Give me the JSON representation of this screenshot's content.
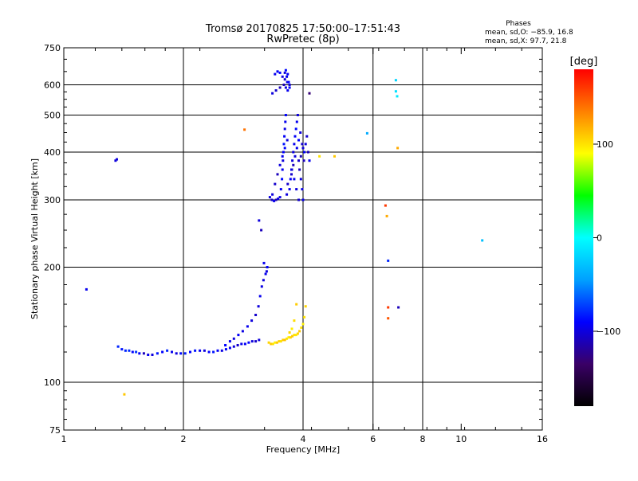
{
  "chart_data": {
    "type": "scatter",
    "title": "Tromsø 20170825 17:50:00–17:51:43",
    "subtitle": "RwPretec (8p)",
    "xlabel": "Frequency [MHz]",
    "ylabel": "Stationary phase Virtual Height [km]",
    "x_scale": "log",
    "y_scale": "log",
    "xlim": [
      1,
      16
    ],
    "ylim": [
      75,
      750
    ],
    "x_ticks": [
      1,
      2,
      4,
      6,
      8,
      10,
      16
    ],
    "y_ticks": [
      75,
      100,
      200,
      300,
      400,
      500,
      600,
      750
    ],
    "x_gridlines": [
      2,
      4,
      6,
      8
    ],
    "y_gridlines": [
      100,
      200,
      300,
      400,
      500,
      600
    ],
    "grid": true,
    "stats_title": "Phases",
    "stats_line1": "mean, sd,O: −85.9, 16.8",
    "stats_line2": "mean, sd,X:  97.7, 21.8",
    "colorbar": {
      "label": "[deg]",
      "ticks": [
        "100",
        "0",
        "−100"
      ],
      "tick_values": [
        100,
        0,
        -100
      ],
      "range": [
        -180,
        180
      ],
      "colors": [
        "#000000",
        "#3a0066",
        "#0000ff",
        "#00a0ff",
        "#00ffff",
        "#00ff00",
        "#ffff00",
        "#ff8000",
        "#ff0000"
      ]
    },
    "series": [
      {
        "x": [
          1.14,
          1.35,
          1.37,
          1.4,
          1.43,
          1.46,
          1.49,
          1.52,
          1.55,
          1.59,
          1.63,
          1.67,
          1.72,
          1.77,
          1.82,
          1.87,
          1.92,
          1.97,
          2.02,
          2.08,
          2.14,
          2.2,
          2.26,
          2.32,
          2.38,
          2.44,
          2.5,
          2.56,
          2.62,
          2.68,
          2.74,
          2.8,
          2.86,
          2.92,
          2.98,
          3.04,
          3.1,
          2.55,
          2.62,
          2.68,
          2.75,
          2.82,
          2.9,
          2.97,
          3.04,
          3.09,
          3.12,
          3.15,
          3.18,
          3.22,
          3.25,
          2.85,
          3.1,
          3.14,
          3.19,
          3.24,
          1.36
        ],
        "y": [
          175,
          380,
          124,
          122,
          121,
          121,
          120,
          120,
          119,
          119,
          118,
          118,
          119,
          120,
          121,
          120,
          119,
          119,
          119,
          120,
          121,
          121,
          121,
          120,
          120,
          121,
          121,
          122,
          123,
          124,
          125,
          126,
          126,
          127,
          128,
          128,
          129,
          125,
          128,
          130,
          133,
          136,
          140,
          145,
          150,
          158,
          168,
          178,
          185,
          192,
          200,
          458,
          265,
          250,
          205,
          195,
          383
        ],
        "phase": [
          -95,
          -100,
          -80,
          -85,
          -80,
          -78,
          -90,
          -75,
          -92,
          -110,
          -95,
          -100,
          -85,
          -90,
          -80,
          -95,
          -100,
          -88,
          -82,
          -90,
          -85,
          -95,
          -100,
          -90,
          -85,
          -92,
          -98,
          -90,
          -95,
          -100,
          -105,
          -95,
          -92,
          -90,
          -100,
          -105,
          -100,
          -90,
          -95,
          -100,
          -92,
          -98,
          -95,
          -100,
          -105,
          -100,
          -95,
          -98,
          -100,
          -95,
          -90,
          140,
          -100,
          -110,
          -95,
          -100,
          -100
        ]
      },
      {
        "x": [
          3.28,
          3.32,
          3.36,
          3.4,
          3.44,
          3.48,
          3.52,
          3.56,
          3.6,
          3.64,
          3.68,
          3.72,
          3.76,
          3.8,
          3.84,
          3.88,
          3.92,
          3.96,
          4.0,
          4.03,
          4.06,
          3.85,
          3.8,
          3.75,
          3.7
        ],
        "y": [
          127,
          126,
          126,
          127,
          127,
          128,
          128,
          129,
          129,
          130,
          131,
          131,
          132,
          133,
          133,
          134,
          136,
          139,
          142,
          148,
          158,
          160,
          145,
          138,
          135
        ],
        "phase": [
          105,
          110,
          100,
          95,
          110,
          105,
          100,
          108,
          112,
          100,
          95,
          105,
          110,
          100,
          98,
          105,
          110,
          100,
          95,
          100,
          105,
          108,
          102,
          96,
          104
        ]
      },
      {
        "x": [
          3.3,
          3.34,
          3.38,
          3.42,
          3.46,
          3.5,
          3.52,
          3.54,
          3.55,
          3.56,
          3.57,
          3.58,
          3.59,
          3.6,
          3.61,
          3.62,
          3.64,
          3.66,
          3.7,
          3.72,
          3.74,
          3.76,
          3.78,
          3.8,
          3.82,
          3.84,
          3.86,
          3.88,
          3.9,
          3.92,
          3.95,
          3.98,
          4.0,
          4.03,
          4.06,
          4.09,
          4.12,
          4.15,
          3.35,
          3.4,
          3.45,
          3.5,
          3.55,
          3.6,
          3.65,
          3.35,
          3.42,
          3.5,
          3.58,
          3.65,
          3.4,
          3.45,
          3.5,
          3.55,
          3.6,
          3.58,
          3.62,
          3.66,
          3.7,
          3.68,
          3.64,
          3.6,
          3.62,
          3.66,
          3.7,
          3.74,
          3.78,
          3.82,
          3.86,
          3.9,
          3.94,
          3.98,
          4.02,
          3.75,
          3.8,
          3.85,
          3.9,
          3.95,
          4.0
        ],
        "y": [
          305,
          300,
          298,
          300,
          302,
          305,
          320,
          340,
          360,
          380,
          400,
          420,
          440,
          460,
          480,
          500,
          310,
          330,
          320,
          340,
          360,
          380,
          400,
          420,
          440,
          460,
          480,
          500,
          380,
          360,
          340,
          320,
          300,
          400,
          420,
          440,
          400,
          380,
          310,
          330,
          350,
          370,
          390,
          410,
          430,
          570,
          580,
          590,
          600,
          610,
          640,
          650,
          645,
          630,
          620,
          600,
          590,
          580,
          590,
          610,
          630,
          645,
          655,
          640,
          600,
          350,
          370,
          390,
          410,
          430,
          450,
          420,
          380,
          360,
          340,
          320,
          300,
          390,
          410
        ],
        "phase": [
          -100,
          -105,
          -95,
          -110,
          -100,
          -98,
          -92,
          -88,
          -95,
          -100,
          -90,
          -85,
          -92,
          -98,
          -95,
          -90,
          -100,
          -105,
          -95,
          -92,
          -90,
          -100,
          -98,
          -95,
          -92,
          -88,
          -95,
          -100,
          -105,
          -110,
          -100,
          -98,
          -95,
          -92,
          -100,
          -105,
          -110,
          -95,
          -100,
          -105,
          -110,
          -100,
          -95,
          -90,
          -100,
          -100,
          -105,
          -110,
          -100,
          -98,
          -95,
          -92,
          -90,
          -100,
          -105,
          -110,
          -100,
          -95,
          -92,
          -90,
          -95,
          -100,
          -88,
          -92,
          -100,
          -105,
          -110,
          -100,
          -95,
          -90,
          -100,
          -105,
          -110,
          -100,
          -95,
          -100,
          -105,
          -110,
          -100
        ]
      },
      {
        "x": [
          4.15,
          4.4,
          4.8,
          5.8,
          6.45,
          6.5,
          6.55,
          6.85,
          6.85,
          6.9,
          6.92,
          6.95,
          6.55,
          6.55,
          11.3,
          1.42
        ],
        "y": [
          570,
          390,
          390,
          448,
          290,
          272,
          208,
          617,
          577,
          560,
          410,
          157,
          157,
          147,
          235,
          93
        ],
        "phase": [
          -130,
          100,
          110,
          -40,
          160,
          120,
          -80,
          -20,
          -15,
          -10,
          120,
          -110,
          160,
          150,
          -30,
          110
        ]
      }
    ]
  }
}
